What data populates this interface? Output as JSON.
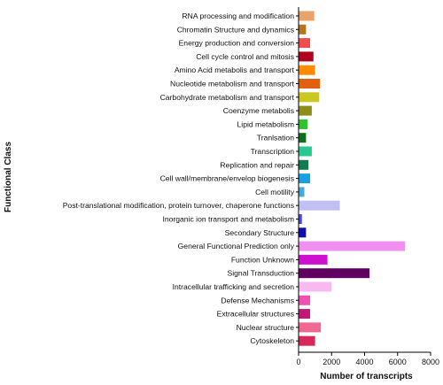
{
  "chart_data": {
    "type": "bar",
    "orientation": "horizontal",
    "xlabel": "Number of transcripts",
    "ylabel": "Functional Class",
    "xlim": [
      0,
      8000
    ],
    "xticks": [
      "0",
      "2000",
      "4000",
      "6000",
      "8000"
    ],
    "grid": false,
    "legend": "none",
    "categories": [
      "RNA processing and modification",
      "Chromatin Structure and dynamics",
      "Energy production and conversion",
      "Cell cycle control and mitosis",
      "Amino Acid metabolis and transport",
      "Nucleotide metabolism and transport",
      "Carbohydrate metabolism and transport",
      "Coenzyme metabolis",
      "Lipid metabolism",
      "Tranlsation",
      "Transcription",
      "Replication and repair",
      "Cell wall/membrane/envelop biogenesis",
      "Cell motility",
      "Post-translational modification, protein turnover, chaperone functions",
      "Inorganic ion transport and metabolism",
      "Secondary Structure",
      "General Functional Prediction only",
      "Function Unknown",
      "Signal Transduction",
      "Intracellular trafficking and secretion",
      "Defense Mechanisms",
      "Extracellular structures",
      "Nuclear structure",
      "Cytoskeleton"
    ],
    "values": [
      950,
      450,
      700,
      900,
      1000,
      1300,
      1250,
      800,
      550,
      450,
      800,
      600,
      700,
      350,
      2500,
      200,
      450,
      6450,
      1750,
      4300,
      2000,
      700,
      700,
      1350,
      1000
    ],
    "colors": [
      "#e8a36a",
      "#b5741e",
      "#f04e4e",
      "#b00020",
      "#ff8c00",
      "#e06010",
      "#c8c820",
      "#8c8c18",
      "#30c030",
      "#0e6e1c",
      "#28c890",
      "#147a50",
      "#18a0e0",
      "#48a8d8",
      "#c0c0f4",
      "#4848d8",
      "#1010a8",
      "#f090f0",
      "#d010d0",
      "#600060",
      "#f8b8f0",
      "#f050b0",
      "#c01878",
      "#f06890",
      "#d82858"
    ]
  }
}
